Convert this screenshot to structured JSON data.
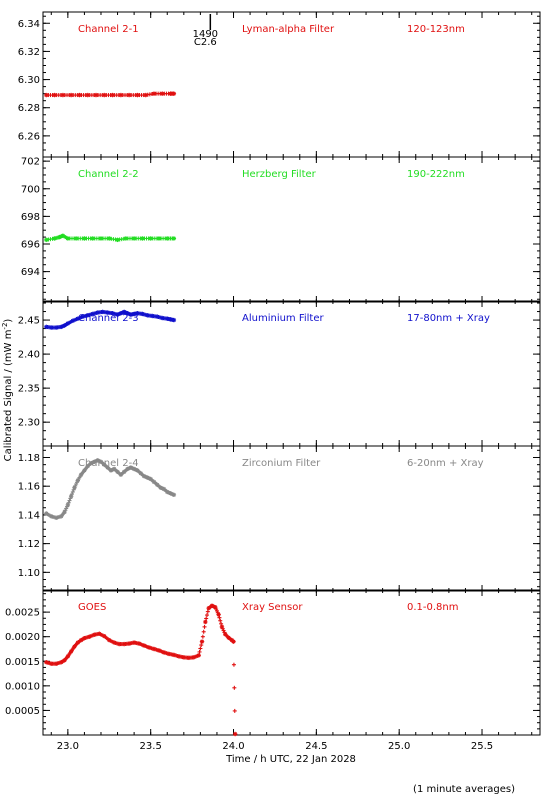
{
  "chart_data": {
    "type": "scatter",
    "xlabel": "Time / h UTC, 22 Jan 2028",
    "ylabel": "Calibrated Signal / (mW m",
    "ylabel_sup": "-2",
    "ylabel_close": ")",
    "footnote": "(1 minute averages)",
    "xlim": [
      22.85,
      25.85
    ],
    "xticks": [
      23.0,
      23.5,
      24.0,
      24.5,
      25.0,
      25.5
    ],
    "xtick_labels": [
      "23.0",
      "23.5",
      "24.0",
      "24.5",
      "25.0",
      "25.5"
    ],
    "marker_annotation": {
      "x": 23.86,
      "lines": [
        "1490",
        "C2.6"
      ]
    },
    "panels": [
      {
        "id": "channel-2-1",
        "labels": [
          "Channel 2-1",
          "Lyman-alpha Filter",
          "120-123nm"
        ],
        "color": "#e01010",
        "ylim": [
          6.245,
          6.348
        ],
        "yticks": [
          6.26,
          6.28,
          6.3,
          6.32,
          6.34
        ],
        "ytick_labels": [
          "6.26",
          "6.28",
          "6.30",
          "6.32",
          "6.34"
        ],
        "points": [
          [
            22.87,
            6.289
          ],
          [
            22.92,
            6.289
          ],
          [
            22.97,
            6.289
          ],
          [
            23.02,
            6.289
          ],
          [
            23.07,
            6.289
          ],
          [
            23.12,
            6.289
          ],
          [
            23.17,
            6.289
          ],
          [
            23.22,
            6.289
          ],
          [
            23.27,
            6.289
          ],
          [
            23.32,
            6.289
          ],
          [
            23.37,
            6.289
          ],
          [
            23.42,
            6.289
          ],
          [
            23.47,
            6.289
          ],
          [
            23.52,
            6.29
          ],
          [
            23.57,
            6.29
          ],
          [
            23.62,
            6.29
          ],
          [
            23.64,
            6.29
          ]
        ]
      },
      {
        "id": "channel-2-2",
        "labels": [
          "Channel 2-2",
          "Herzberg Filter",
          "190-222nm"
        ],
        "color": "#22dd22",
        "ylim": [
          691.8,
          702.3
        ],
        "yticks": [
          694,
          696,
          698,
          700,
          702
        ],
        "ytick_labels": [
          "694",
          "696",
          "698",
          "700",
          "702"
        ],
        "points": [
          [
            22.87,
            696.3
          ],
          [
            22.92,
            696.4
          ],
          [
            22.95,
            696.5
          ],
          [
            22.97,
            696.6
          ],
          [
            23.0,
            696.4
          ],
          [
            23.05,
            696.4
          ],
          [
            23.1,
            696.4
          ],
          [
            23.15,
            696.4
          ],
          [
            23.2,
            696.4
          ],
          [
            23.25,
            696.4
          ],
          [
            23.3,
            696.3
          ],
          [
            23.35,
            696.4
          ],
          [
            23.4,
            696.4
          ],
          [
            23.45,
            696.4
          ],
          [
            23.5,
            696.4
          ],
          [
            23.55,
            696.4
          ],
          [
            23.6,
            696.4
          ],
          [
            23.64,
            696.4
          ]
        ]
      },
      {
        "id": "channel-2-3",
        "labels": [
          "Channel 2-3",
          "Aluminium Filter",
          "17-80nm + Xray"
        ],
        "color": "#1010cc",
        "ylim": [
          2.265,
          2.478
        ],
        "yticks": [
          2.3,
          2.35,
          2.4,
          2.45
        ],
        "ytick_labels": [
          "2.30",
          "2.35",
          "2.40",
          "2.45"
        ],
        "points": [
          [
            22.87,
            2.44
          ],
          [
            22.9,
            2.439
          ],
          [
            22.93,
            2.439
          ],
          [
            22.96,
            2.44
          ],
          [
            22.98,
            2.442
          ],
          [
            23.0,
            2.445
          ],
          [
            23.03,
            2.449
          ],
          [
            23.06,
            2.452
          ],
          [
            23.09,
            2.455
          ],
          [
            23.12,
            2.457
          ],
          [
            23.15,
            2.459
          ],
          [
            23.18,
            2.461
          ],
          [
            23.21,
            2.462
          ],
          [
            23.24,
            2.461
          ],
          [
            23.27,
            2.46
          ],
          [
            23.3,
            2.458
          ],
          [
            23.32,
            2.46
          ],
          [
            23.34,
            2.462
          ],
          [
            23.36,
            2.46
          ],
          [
            23.38,
            2.458
          ],
          [
            23.4,
            2.459
          ],
          [
            23.42,
            2.46
          ],
          [
            23.45,
            2.459
          ],
          [
            23.48,
            2.457
          ],
          [
            23.51,
            2.456
          ],
          [
            23.54,
            2.455
          ],
          [
            23.57,
            2.453
          ],
          [
            23.6,
            2.452
          ],
          [
            23.62,
            2.451
          ],
          [
            23.64,
            2.45
          ]
        ]
      },
      {
        "id": "channel-2-4",
        "labels": [
          "Channel 2-4",
          "Zirconium Filter",
          "6-20nm + Xray"
        ],
        "color": "#888888",
        "ylim": [
          1.087,
          1.188
        ],
        "yticks": [
          1.1,
          1.12,
          1.14,
          1.16,
          1.18
        ],
        "ytick_labels": [
          "1.10",
          "1.12",
          "1.14",
          "1.16",
          "1.18"
        ],
        "points": [
          [
            22.87,
            1.141
          ],
          [
            22.9,
            1.139
          ],
          [
            22.93,
            1.138
          ],
          [
            22.96,
            1.139
          ],
          [
            22.98,
            1.142
          ],
          [
            23.0,
            1.147
          ],
          [
            23.02,
            1.153
          ],
          [
            23.04,
            1.159
          ],
          [
            23.06,
            1.164
          ],
          [
            23.08,
            1.168
          ],
          [
            23.1,
            1.171
          ],
          [
            23.12,
            1.174
          ],
          [
            23.14,
            1.176
          ],
          [
            23.16,
            1.177
          ],
          [
            23.18,
            1.178
          ],
          [
            23.2,
            1.177
          ],
          [
            23.22,
            1.175
          ],
          [
            23.24,
            1.173
          ],
          [
            23.26,
            1.171
          ],
          [
            23.28,
            1.172
          ],
          [
            23.3,
            1.17
          ],
          [
            23.32,
            1.168
          ],
          [
            23.34,
            1.17
          ],
          [
            23.36,
            1.172
          ],
          [
            23.38,
            1.173
          ],
          [
            23.4,
            1.172
          ],
          [
            23.42,
            1.171
          ],
          [
            23.44,
            1.169
          ],
          [
            23.46,
            1.167
          ],
          [
            23.48,
            1.166
          ],
          [
            23.5,
            1.165
          ],
          [
            23.52,
            1.163
          ],
          [
            23.54,
            1.161
          ],
          [
            23.56,
            1.159
          ],
          [
            23.58,
            1.158
          ],
          [
            23.6,
            1.156
          ],
          [
            23.62,
            1.155
          ],
          [
            23.64,
            1.154
          ]
        ]
      },
      {
        "id": "goes",
        "labels": [
          "GOES",
          "Xray Sensor",
          "0.1-0.8nm"
        ],
        "color": "#e01010",
        "ylim": [
          0.0,
          0.00295
        ],
        "yticks": [
          0.0005,
          0.001,
          0.0015,
          0.002,
          0.0025
        ],
        "ytick_labels": [
          "0.0005",
          "0.0010",
          "0.0015",
          "0.0020",
          "0.0025"
        ],
        "points": [
          [
            22.87,
            0.00148
          ],
          [
            22.9,
            0.00145
          ],
          [
            22.93,
            0.00145
          ],
          [
            22.96,
            0.00148
          ],
          [
            22.98,
            0.00152
          ],
          [
            23.0,
            0.0016
          ],
          [
            23.02,
            0.0017
          ],
          [
            23.04,
            0.0018
          ],
          [
            23.06,
            0.00188
          ],
          [
            23.08,
            0.00193
          ],
          [
            23.1,
            0.00197
          ],
          [
            23.13,
            0.002
          ],
          [
            23.16,
            0.00204
          ],
          [
            23.19,
            0.00206
          ],
          [
            23.22,
            0.00201
          ],
          [
            23.25,
            0.00193
          ],
          [
            23.28,
            0.00188
          ],
          [
            23.31,
            0.00185
          ],
          [
            23.34,
            0.00185
          ],
          [
            23.37,
            0.00186
          ],
          [
            23.4,
            0.00188
          ],
          [
            23.43,
            0.00186
          ],
          [
            23.46,
            0.00182
          ],
          [
            23.49,
            0.00178
          ],
          [
            23.52,
            0.00175
          ],
          [
            23.55,
            0.00172
          ],
          [
            23.58,
            0.00168
          ],
          [
            23.61,
            0.00165
          ],
          [
            23.64,
            0.00163
          ],
          [
            23.67,
            0.0016
          ],
          [
            23.7,
            0.00158
          ],
          [
            23.73,
            0.00157
          ],
          [
            23.76,
            0.00158
          ],
          [
            23.79,
            0.00162
          ],
          [
            23.81,
            0.0019
          ],
          [
            23.83,
            0.0023
          ],
          [
            23.85,
            0.00258
          ],
          [
            23.87,
            0.00263
          ],
          [
            23.89,
            0.0026
          ],
          [
            23.91,
            0.00245
          ],
          [
            23.93,
            0.0022
          ],
          [
            23.95,
            0.00205
          ],
          [
            23.97,
            0.00198
          ],
          [
            23.99,
            0.00193
          ],
          [
            24.0,
            0.0019
          ],
          [
            24.01,
            2e-05
          ]
        ]
      }
    ]
  }
}
